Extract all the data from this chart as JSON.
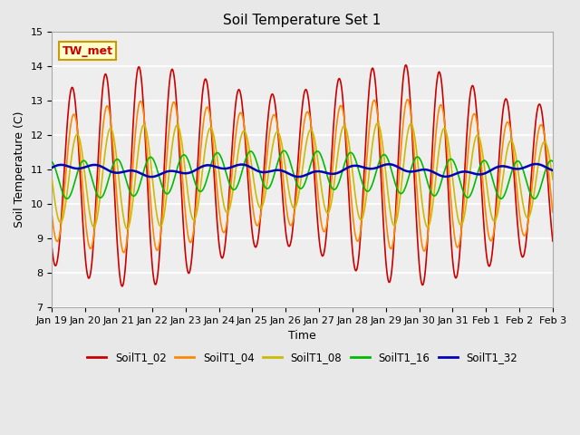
{
  "title": "Soil Temperature Set 1",
  "xlabel": "Time",
  "ylabel": "Soil Temperature (C)",
  "ylim": [
    7.0,
    15.0
  ],
  "yticks": [
    7.0,
    8.0,
    9.0,
    10.0,
    11.0,
    12.0,
    13.0,
    14.0,
    15.0
  ],
  "xtick_labels": [
    "Jan 19",
    "Jan 20",
    "Jan 21",
    "Jan 22",
    "Jan 23",
    "Jan 24",
    "Jan 25",
    "Jan 26",
    "Jan 27",
    "Jan 28",
    "Jan 29",
    "Jan 30",
    "Jan 31",
    "Feb 1",
    "Feb 2",
    "Feb 3"
  ],
  "series_names": [
    "SoilT1_02",
    "SoilT1_04",
    "SoilT1_08",
    "SoilT1_16",
    "SoilT1_32"
  ],
  "series_colors": [
    "#cc0000",
    "#ff8800",
    "#ccbb00",
    "#00bb00",
    "#0000bb"
  ],
  "series_linewidths": [
    1.2,
    1.2,
    1.2,
    1.2,
    1.8
  ],
  "annotation_text": "TW_met",
  "annotation_color": "#cc0000",
  "annotation_bg": "#ffffcc",
  "annotation_border": "#cc9900",
  "bg_color": "#e8e8e8",
  "plot_bg_color": "#eeeeee",
  "grid_color": "white"
}
